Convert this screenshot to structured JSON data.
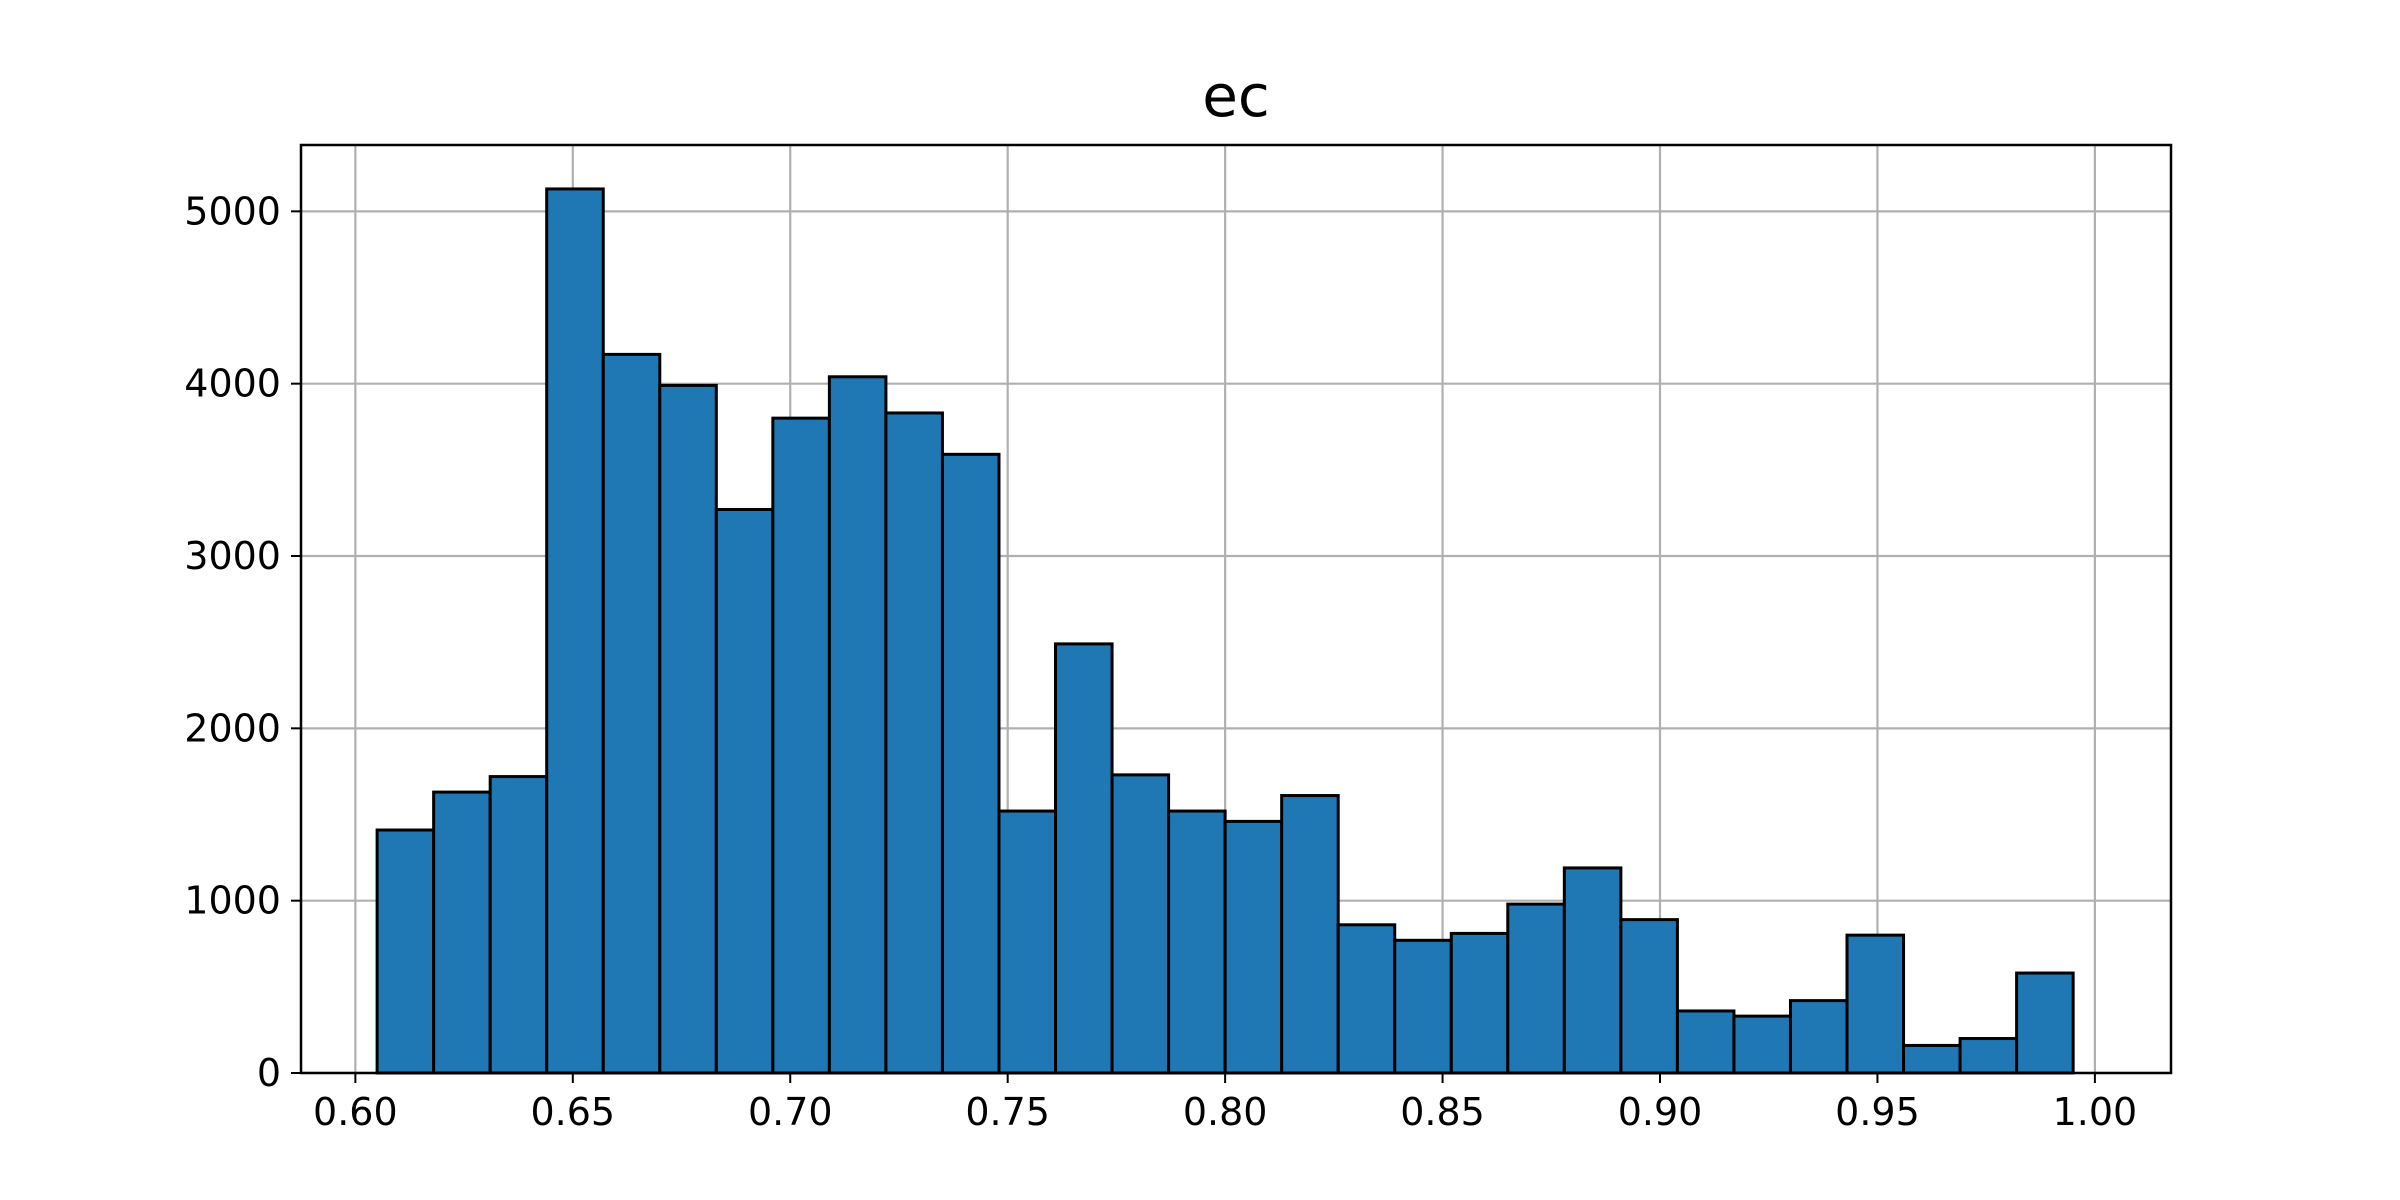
{
  "chart_data": {
    "type": "bar",
    "title": "ec",
    "xlabel": "",
    "ylabel": "",
    "xlim": [
      0.5875,
      1.0175
    ],
    "ylim": [
      0,
      5385
    ],
    "grid": true,
    "bar_color": "#1f77b4",
    "edge_color": "#000000",
    "xticks": [
      0.6,
      0.65,
      0.7,
      0.75,
      0.8,
      0.85,
      0.9,
      0.95,
      1.0
    ],
    "xtick_labels": [
      "0.60",
      "0.65",
      "0.70",
      "0.75",
      "0.80",
      "0.85",
      "0.90",
      "0.95",
      "1.00"
    ],
    "yticks": [
      0,
      1000,
      2000,
      3000,
      4000,
      5000
    ],
    "ytick_labels": [
      "0",
      "1000",
      "2000",
      "3000",
      "4000",
      "5000"
    ],
    "bins": {
      "start": 0.605,
      "width": 0.013,
      "counts": [
        1410,
        1630,
        1720,
        5130,
        4170,
        3990,
        3270,
        3800,
        4040,
        3830,
        3590,
        1520,
        2490,
        1730,
        1520,
        1460,
        1610,
        860,
        770,
        810,
        980,
        1190,
        890,
        360,
        330,
        420,
        800,
        160,
        200,
        580
      ]
    }
  }
}
